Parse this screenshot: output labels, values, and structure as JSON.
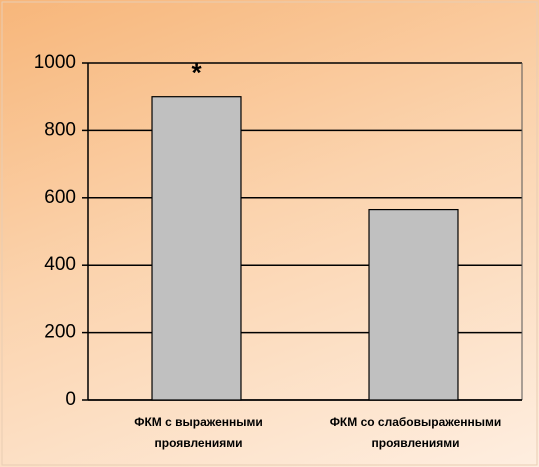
{
  "chart_data": {
    "type": "bar",
    "annotation": "*",
    "categories": [
      "ФКМ с выраженными проявлениями",
      "ФКМ со слабовыраженными проявлениями"
    ],
    "values": [
      900,
      565
    ],
    "color": "#c0c0c0",
    "ylim": [
      0,
      1000
    ],
    "yticks": [
      0,
      200,
      400,
      600,
      800,
      1000
    ],
    "grid": true
  }
}
